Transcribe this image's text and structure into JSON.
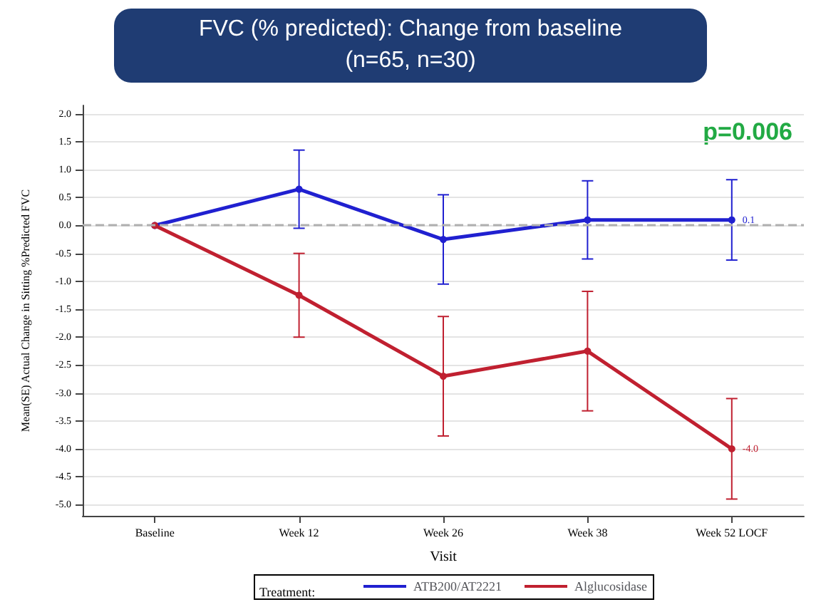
{
  "chart_data": {
    "type": "line",
    "title": "FVC (% predicted): Change from baseline",
    "subtitle": "(n=65, n=30)",
    "xlabel": "Visit",
    "ylabel": "Mean(SE) Actual Change in Sitting %Predicted FVC",
    "legend_title": "Treatment:",
    "annotations": [
      "p=0.006"
    ],
    "categories": [
      "Baseline",
      "Week 12",
      "Week 26",
      "Week 38",
      "Week 52 LOCF"
    ],
    "ylim": [
      -5.2,
      2.15
    ],
    "yticks": [
      {
        "value": 2,
        "label": "2.0"
      },
      1.5,
      {
        "value": 1,
        "label": "1.0"
      },
      0.5,
      {
        "value": 0,
        "label": "0.0"
      },
      -0.5,
      {
        "value": -1,
        "label": "-1.0"
      },
      -1.5,
      {
        "value": -2,
        "label": "-2.0"
      },
      -2.5,
      {
        "value": -3,
        "label": "-3.0"
      },
      -3.5,
      {
        "value": -4,
        "label": "-4.0"
      },
      -4.5,
      {
        "value": -5,
        "label": "-5.0"
      }
    ],
    "series": [
      {
        "name": "ATB200/AT2221",
        "color": "#2020d0",
        "values": [
          0,
          0.65,
          -0.25,
          0.1,
          0.1
        ],
        "errors": [
          null,
          0.7,
          0.8,
          0.7,
          0.72
        ],
        "value_labels": [
          null,
          null,
          null,
          null,
          "0.1"
        ]
      },
      {
        "name": "Alglucosidase",
        "color": "#c02030",
        "values": [
          0,
          -1.25,
          -2.7,
          -2.25,
          -4.0
        ],
        "errors": [
          null,
          0.75,
          1.07,
          1.07,
          0.9
        ],
        "value_labels": [
          null,
          null,
          null,
          null,
          "-4.0"
        ]
      }
    ],
    "ref_lines": [
      {
        "axis": "y",
        "value": 0,
        "color": "#b0b0b0",
        "line_style": "dashed"
      }
    ],
    "grid": "y",
    "legend": "bottom",
    "marker": "circle",
    "line_style": "solid"
  }
}
